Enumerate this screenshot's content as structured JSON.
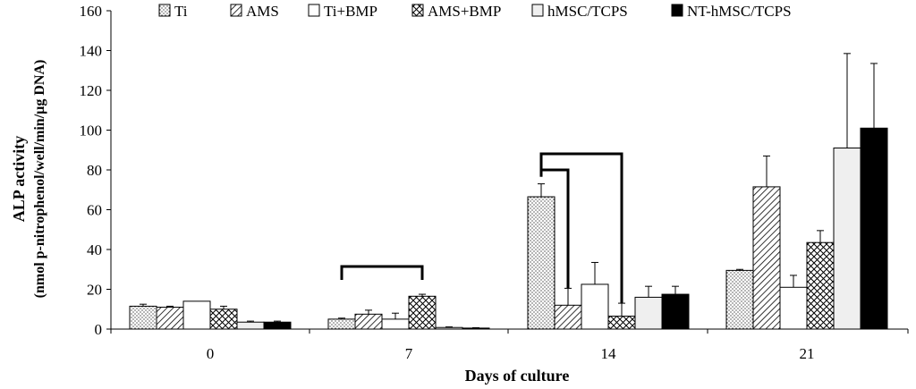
{
  "chart_data": {
    "type": "bar",
    "xlabel": "Days of culture",
    "ylabel": "ALP activity",
    "ylabel_sub": "(nmol p-nitrophenol/well/min/µg DNA)",
    "ylim": [
      0,
      160
    ],
    "yticks": [
      "0",
      "20",
      "40",
      "60",
      "80",
      "100",
      "120",
      "140",
      "160"
    ],
    "categories": [
      "0",
      "7",
      "14",
      "21"
    ],
    "legend_position": "top",
    "grid": false,
    "series": [
      {
        "name": "Ti",
        "pattern": "dots",
        "values": [
          11.5,
          5,
          66.5,
          29.5
        ],
        "errors": [
          1,
          0.5,
          6.5,
          0.5
        ]
      },
      {
        "name": "AMS",
        "pattern": "diagonal",
        "values": [
          11,
          7.5,
          12,
          71.5
        ],
        "errors": [
          0.5,
          2,
          8.5,
          15.5
        ]
      },
      {
        "name": "Ti+BMP",
        "pattern": "white",
        "values": [
          14,
          5,
          22.5,
          21
        ],
        "errors": [
          0,
          3,
          11,
          6
        ]
      },
      {
        "name": "AMS+BMP",
        "pattern": "crosshatch",
        "values": [
          10,
          16.5,
          6.5,
          43.5
        ],
        "errors": [
          1.5,
          1,
          6.5,
          6
        ]
      },
      {
        "name": "hMSC/TCPS",
        "pattern": "lightgray",
        "values": [
          3.5,
          0.8,
          16,
          91
        ],
        "errors": [
          0.5,
          0.3,
          5.5,
          47.5
        ]
      },
      {
        "name": "NT-hMSC/TCPS",
        "pattern": "black",
        "values": [
          3.5,
          0.5,
          17.5,
          101
        ],
        "errors": [
          0.5,
          0.2,
          4,
          32.5
        ]
      }
    ],
    "significance_brackets": [
      {
        "category": "7",
        "from_series": "Ti",
        "to_series": "AMS+BMP",
        "level": 1
      },
      {
        "category": "14",
        "from_series": "Ti",
        "to_series": "AMS",
        "level": 1
      },
      {
        "category": "14",
        "from_series": "Ti",
        "to_series": "AMS+BMP",
        "level": 2
      }
    ]
  }
}
